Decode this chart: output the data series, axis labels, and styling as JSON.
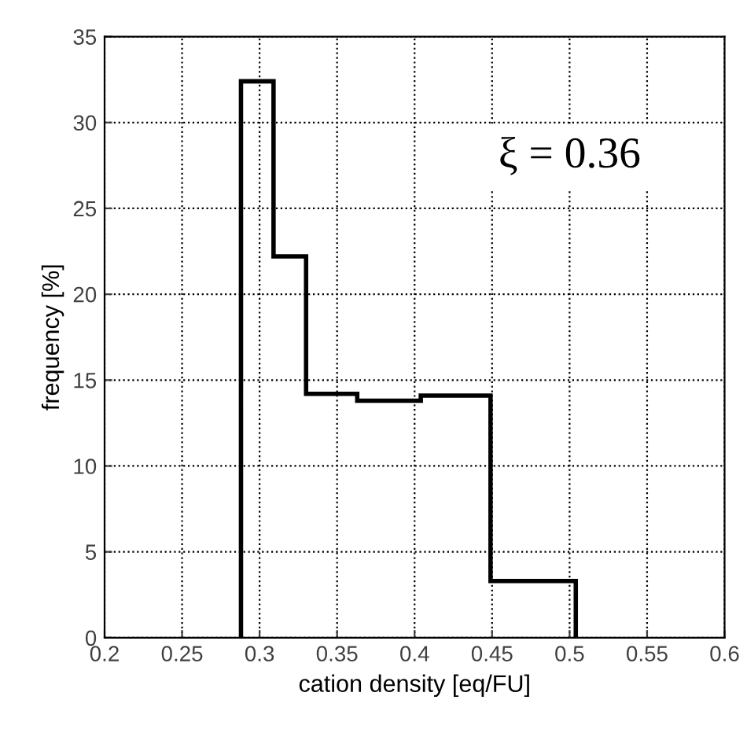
{
  "chart_data": {
    "type": "histogram",
    "xlabel": "cation density [eq/FU]",
    "ylabel": "frequency [%]",
    "bins": [
      0.288,
      0.309,
      0.33,
      0.363,
      0.404,
      0.449,
      0.504
    ],
    "values": [
      32.4,
      22.2,
      14.2,
      13.8,
      14.1,
      3.3
    ],
    "color": "#000000",
    "xlim": [
      0.2,
      0.6
    ],
    "xticks": [
      0.2,
      0.25,
      0.3,
      0.35,
      0.4,
      0.45,
      0.5,
      0.55,
      0.6
    ],
    "ylim": [
      0,
      35
    ],
    "yticks": [
      0,
      5,
      10,
      15,
      20,
      25,
      30,
      35
    ],
    "grid": true,
    "annotations": [
      "ξ = 0.36"
    ]
  }
}
